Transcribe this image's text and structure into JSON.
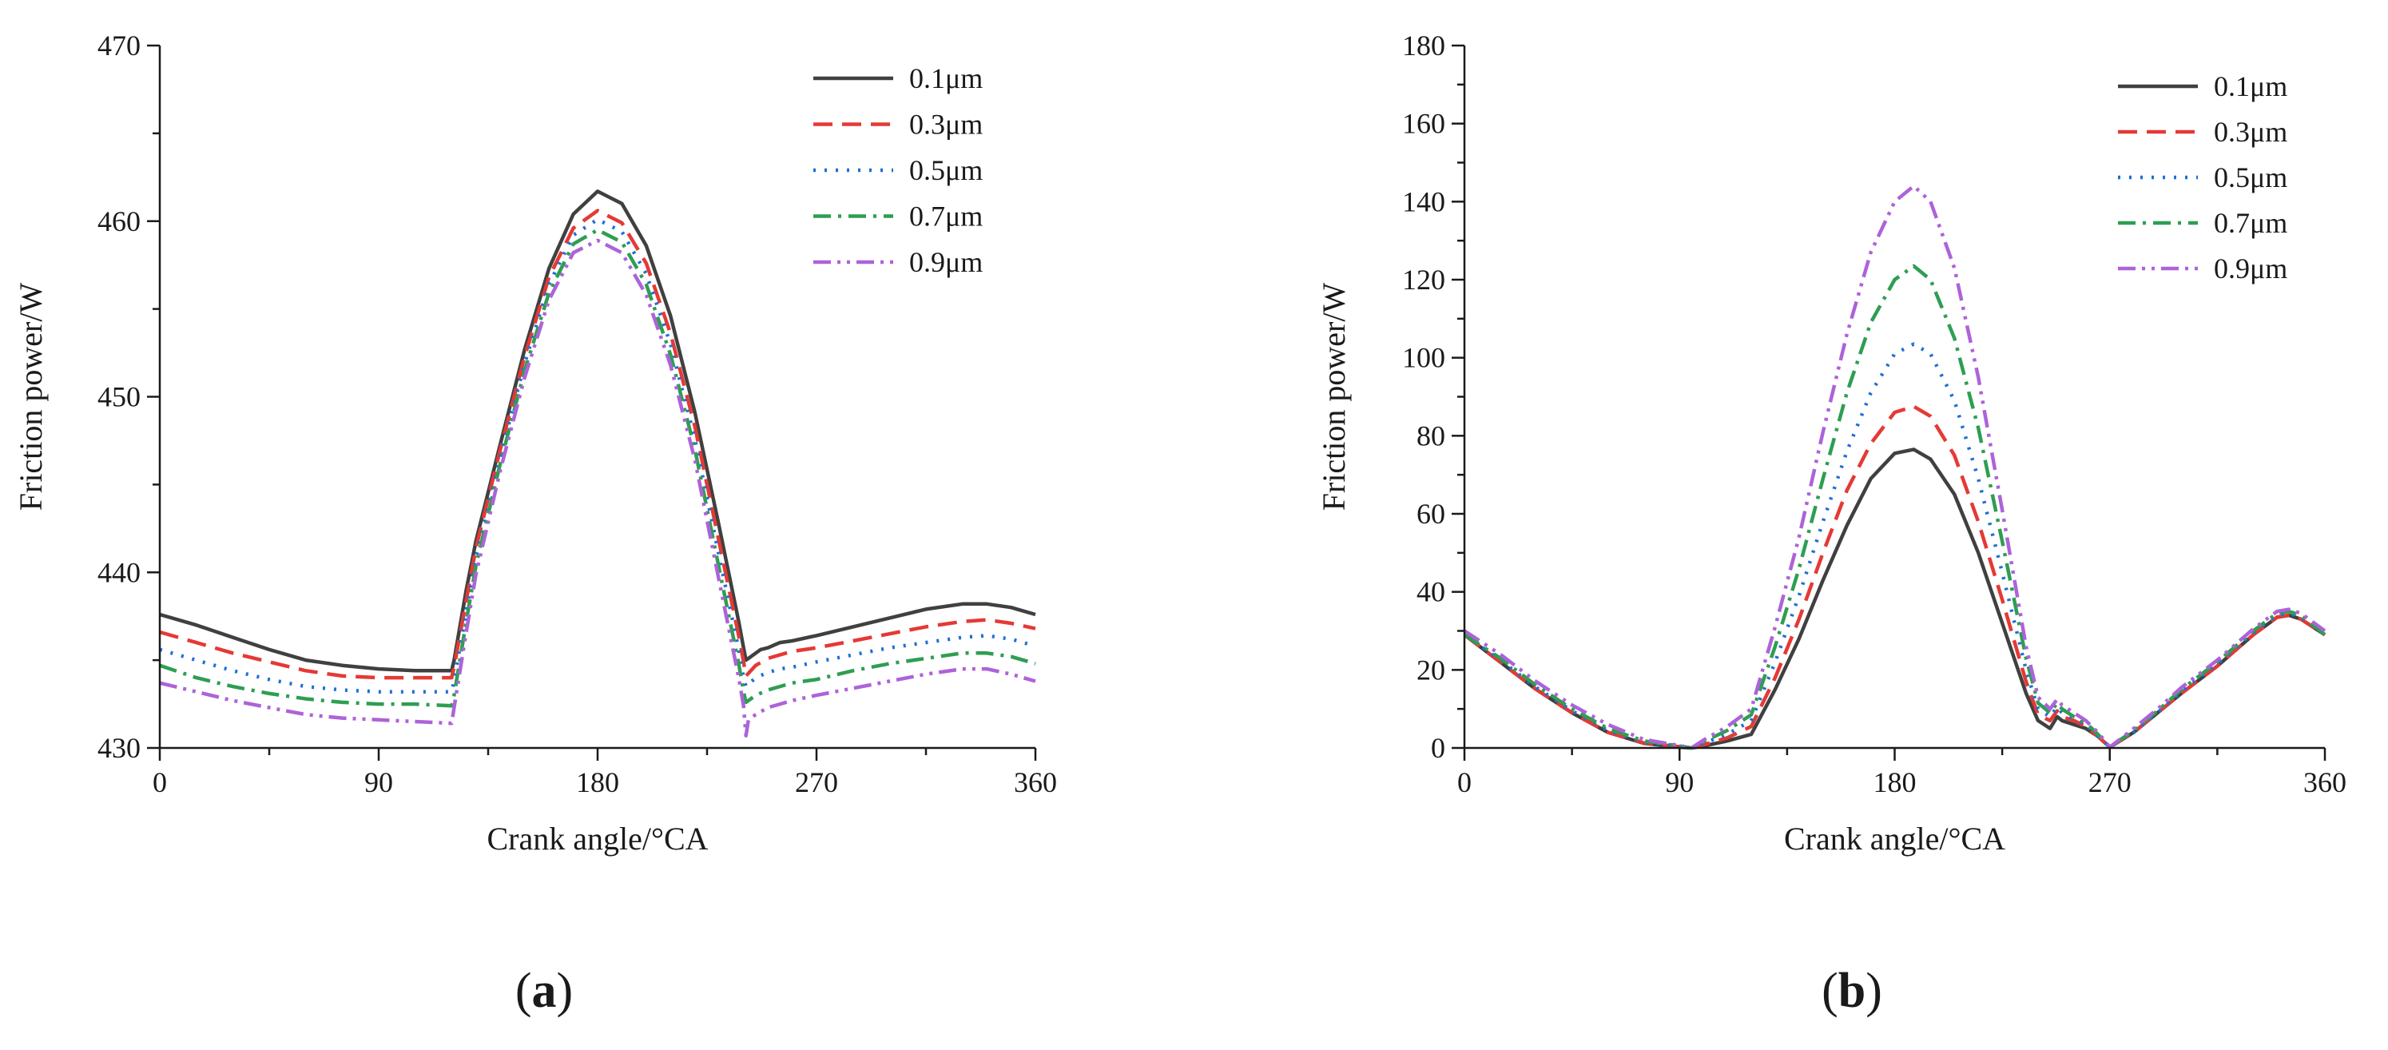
{
  "colors": {
    "0.1um": "#404040",
    "0.3um": "#e53935",
    "0.5um": "#1e6fd6",
    "0.7um": "#2e9e52",
    "0.9um": "#ad63d9"
  },
  "chart_data": [
    {
      "id": "a",
      "type": "line",
      "panel_label": "a",
      "title": "",
      "xlabel": "Crank angle/°CA",
      "ylabel": "Friction power/W",
      "xlim": [
        0,
        360
      ],
      "ylim": [
        430,
        470
      ],
      "xticks": [
        0,
        90,
        180,
        270,
        360
      ],
      "yticks": [
        430,
        440,
        450,
        460,
        470
      ],
      "legend_position": "top-right",
      "series": [
        {
          "name": "0.1μm",
          "key": "0.1um",
          "dash": "solid",
          "x": [
            0,
            15,
            30,
            45,
            60,
            75,
            90,
            105,
            120,
            121,
            126,
            130,
            140,
            150,
            160,
            170,
            180,
            190,
            200,
            210,
            220,
            230,
            238,
            240,
            241,
            242,
            247,
            250,
            255,
            260,
            270,
            285,
            300,
            315,
            330,
            340,
            350,
            360
          ],
          "y": [
            437.6,
            437.0,
            436.3,
            435.6,
            435.0,
            434.7,
            434.5,
            434.4,
            434.4,
            435.0,
            439.0,
            441.8,
            447.3,
            452.7,
            457.3,
            460.4,
            461.7,
            461.0,
            458.6,
            454.6,
            449.1,
            442.6,
            437.2,
            435.7,
            435.0,
            435.1,
            435.6,
            435.7,
            436.0,
            436.1,
            436.4,
            436.9,
            437.4,
            437.9,
            438.2,
            438.2,
            438.0,
            437.6
          ]
        },
        {
          "name": "0.3μm",
          "key": "0.3um",
          "dash": "dashed",
          "x": [
            0,
            15,
            30,
            45,
            60,
            75,
            90,
            105,
            120,
            121,
            126,
            130,
            140,
            150,
            160,
            170,
            180,
            190,
            200,
            210,
            220,
            230,
            238,
            240,
            241,
            245,
            250,
            255,
            260,
            270,
            285,
            300,
            315,
            330,
            340,
            350,
            360
          ],
          "y": [
            436.6,
            436.0,
            435.4,
            434.9,
            434.4,
            434.1,
            434.0,
            434.0,
            434.0,
            434.6,
            438.4,
            441.4,
            447.0,
            452.3,
            456.8,
            459.6,
            460.6,
            459.9,
            457.6,
            453.6,
            448.3,
            441.7,
            436.4,
            434.9,
            434.1,
            434.7,
            435.1,
            435.3,
            435.5,
            435.7,
            436.1,
            436.5,
            436.9,
            437.2,
            437.3,
            437.1,
            436.8
          ]
        },
        {
          "name": "0.5μm",
          "key": "0.5um",
          "dash": "dotted",
          "x": [
            0,
            15,
            30,
            45,
            60,
            75,
            90,
            105,
            120,
            121,
            126,
            130,
            140,
            150,
            160,
            170,
            180,
            190,
            200,
            210,
            220,
            230,
            238,
            240,
            241,
            245,
            250,
            255,
            260,
            270,
            285,
            300,
            315,
            330,
            340,
            350,
            360
          ],
          "y": [
            435.6,
            435.0,
            434.4,
            433.9,
            433.5,
            433.3,
            433.2,
            433.2,
            433.2,
            433.8,
            437.8,
            440.9,
            446.6,
            451.9,
            456.4,
            459.2,
            460.1,
            459.4,
            457.0,
            453.0,
            447.6,
            440.9,
            435.6,
            434.0,
            433.5,
            434.0,
            434.3,
            434.5,
            434.6,
            434.9,
            435.3,
            435.7,
            436.0,
            436.3,
            436.4,
            436.2,
            435.8
          ]
        },
        {
          "name": "0.7μm",
          "key": "0.7um",
          "dash": "dashdot",
          "x": [
            0,
            15,
            30,
            45,
            60,
            75,
            90,
            105,
            120,
            121,
            126,
            130,
            140,
            150,
            160,
            170,
            180,
            190,
            200,
            210,
            220,
            230,
            238,
            240,
            241,
            245,
            250,
            255,
            260,
            270,
            285,
            300,
            315,
            330,
            340,
            350,
            360
          ],
          "y": [
            434.7,
            434.0,
            433.5,
            433.1,
            432.8,
            432.6,
            432.5,
            432.5,
            432.4,
            433.0,
            437.2,
            440.4,
            446.2,
            451.5,
            455.9,
            458.7,
            459.5,
            458.8,
            456.4,
            452.4,
            447.0,
            440.2,
            434.8,
            433.2,
            432.6,
            433.0,
            433.3,
            433.5,
            433.7,
            433.9,
            434.4,
            434.8,
            435.1,
            435.4,
            435.4,
            435.2,
            434.8
          ]
        },
        {
          "name": "0.9μm",
          "key": "0.9um",
          "dash": "dashdotdot",
          "x": [
            0,
            15,
            30,
            45,
            60,
            75,
            90,
            105,
            120,
            121,
            126,
            130,
            140,
            150,
            160,
            170,
            180,
            190,
            200,
            210,
            220,
            230,
            238,
            240,
            241,
            242,
            245,
            250,
            255,
            260,
            270,
            285,
            300,
            315,
            330,
            340,
            350,
            360
          ],
          "y": [
            433.7,
            433.2,
            432.7,
            432.3,
            431.9,
            431.7,
            431.6,
            431.5,
            431.4,
            432.3,
            436.6,
            439.9,
            445.8,
            451.1,
            455.5,
            458.2,
            458.9,
            458.2,
            455.8,
            451.8,
            446.4,
            439.5,
            434.0,
            432.4,
            430.7,
            431.6,
            431.9,
            432.3,
            432.5,
            432.7,
            433.0,
            433.4,
            433.8,
            434.2,
            434.5,
            434.5,
            434.2,
            433.8
          ]
        }
      ]
    },
    {
      "id": "b",
      "type": "line",
      "panel_label": "b",
      "title": "",
      "xlabel": "Crank angle/°CA",
      "ylabel": "Friction power/W",
      "xlim": [
        0,
        360
      ],
      "ylim": [
        0,
        180
      ],
      "xticks": [
        0,
        90,
        180,
        270,
        360
      ],
      "yticks": [
        0,
        20,
        40,
        60,
        80,
        100,
        120,
        140,
        160,
        180
      ],
      "legend_position": "top-right",
      "series": [
        {
          "name": "0.1μm",
          "key": "0.1um",
          "dash": "solid",
          "x": [
            0,
            15,
            30,
            45,
            60,
            75,
            90,
            95,
            100,
            110,
            120,
            130,
            140,
            150,
            160,
            170,
            180,
            188,
            195,
            205,
            215,
            225,
            235,
            240,
            245,
            248,
            250,
            255,
            260,
            265,
            270,
            280,
            290,
            300,
            315,
            330,
            340,
            345,
            350,
            360
          ],
          "y": [
            29,
            22,
            15,
            9,
            4,
            1.2,
            0.2,
            0,
            0.5,
            1.8,
            3.5,
            15,
            28,
            43,
            57,
            69,
            75.5,
            76.5,
            74,
            65,
            50,
            32,
            14,
            7,
            5,
            8,
            7,
            6,
            5,
            3,
            0.2,
            4,
            9,
            14,
            21,
            29,
            33.5,
            34,
            33,
            29
          ]
        },
        {
          "name": "0.3μm",
          "key": "0.3um",
          "dash": "dashed",
          "x": [
            0,
            15,
            30,
            45,
            60,
            75,
            90,
            95,
            100,
            110,
            120,
            130,
            140,
            150,
            160,
            170,
            180,
            188,
            195,
            205,
            215,
            225,
            235,
            240,
            245,
            248,
            250,
            255,
            260,
            265,
            270,
            280,
            290,
            300,
            315,
            330,
            340,
            345,
            350,
            360
          ],
          "y": [
            29,
            22,
            15,
            9,
            4,
            1.3,
            0.3,
            0,
            0.8,
            2.6,
            5.5,
            18,
            33,
            50,
            66,
            78,
            86,
            87.5,
            85,
            75,
            58,
            38,
            17,
            8.5,
            7,
            9.5,
            8,
            7,
            5.5,
            3,
            0.2,
            4,
            9,
            14,
            21,
            29,
            33.5,
            34,
            33,
            29
          ]
        },
        {
          "name": "0.5μm",
          "key": "0.5um",
          "dash": "dotted",
          "x": [
            0,
            15,
            30,
            45,
            60,
            75,
            90,
            95,
            100,
            110,
            120,
            130,
            140,
            150,
            160,
            170,
            180,
            188,
            195,
            205,
            215,
            225,
            235,
            240,
            245,
            248,
            250,
            255,
            260,
            265,
            270,
            280,
            290,
            300,
            315,
            330,
            340,
            345,
            350,
            360
          ],
          "y": [
            29,
            22.5,
            15.5,
            9.5,
            4.5,
            1.5,
            0.4,
            0,
            1.2,
            3.5,
            7,
            22,
            39,
            58,
            76,
            91,
            101,
            103.5,
            101,
            89,
            69,
            45,
            20,
            10,
            8,
            10.5,
            9,
            7.5,
            6,
            3,
            0.2,
            4,
            9,
            14.5,
            21.5,
            29.5,
            34,
            34.5,
            33.5,
            29
          ]
        },
        {
          "name": "0.7μm",
          "key": "0.7um",
          "dash": "dashdot",
          "x": [
            0,
            15,
            30,
            45,
            60,
            75,
            90,
            95,
            100,
            110,
            120,
            130,
            140,
            150,
            160,
            170,
            180,
            188,
            195,
            205,
            215,
            225,
            235,
            240,
            245,
            248,
            250,
            255,
            260,
            265,
            270,
            280,
            290,
            300,
            315,
            330,
            340,
            345,
            350,
            360
          ],
          "y": [
            29,
            23,
            16,
            10,
            5,
            1.8,
            0.5,
            0,
            1.6,
            4.5,
            8.5,
            26,
            46,
            69,
            91,
            109,
            120,
            123.5,
            120,
            105,
            82,
            53,
            23,
            11.5,
            9,
            11.5,
            10,
            8,
            6.5,
            3.5,
            0.2,
            4.5,
            9.5,
            15,
            22,
            30,
            34.5,
            35,
            34,
            29
          ]
        },
        {
          "name": "0.9μm",
          "key": "0.9um",
          "dash": "dashdotdot",
          "x": [
            0,
            15,
            30,
            45,
            60,
            75,
            90,
            95,
            100,
            110,
            120,
            130,
            140,
            150,
            160,
            170,
            180,
            188,
            195,
            205,
            215,
            225,
            235,
            240,
            245,
            248,
            250,
            255,
            260,
            265,
            270,
            280,
            290,
            300,
            315,
            330,
            340,
            345,
            350,
            360
          ],
          "y": [
            30,
            24,
            17,
            11,
            6,
            2.2,
            0.6,
            0,
            2,
            5.5,
            10,
            31,
            54,
            81,
            106,
            127,
            140,
            144,
            140,
            123,
            95,
            61,
            26,
            13,
            10,
            12.5,
            11,
            9,
            7,
            4,
            0.2,
            5,
            10,
            15.5,
            22.5,
            30.5,
            35,
            35.5,
            34.5,
            30
          ]
        }
      ]
    }
  ]
}
